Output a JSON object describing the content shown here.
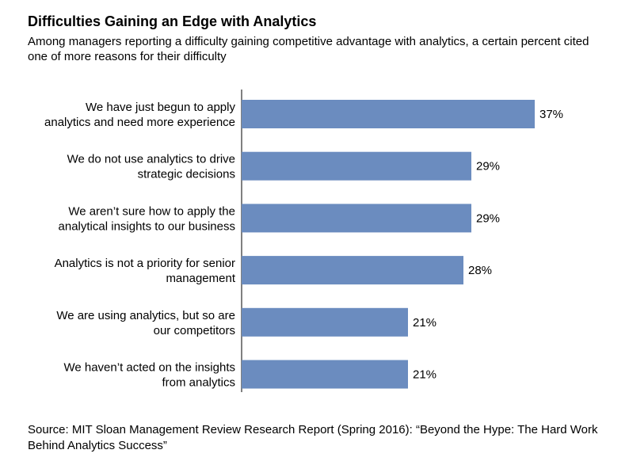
{
  "chart_data": {
    "type": "bar",
    "orientation": "horizontal",
    "title": "Difficulties Gaining an Edge with Analytics",
    "subtitle": "Among managers reporting a difficulty gaining competitive advantage with analytics, a certain percent cited one of more reasons for their difficulty",
    "categories": [
      [
        "We have just begun to apply",
        "analytics and need more experience"
      ],
      [
        "We do not use analytics to drive",
        "strategic decisions"
      ],
      [
        "We aren’t sure how to apply the",
        "analytical insights to our business"
      ],
      [
        "Analytics is not a priority for senior",
        "management"
      ],
      [
        "We are using analytics, but so are",
        "our competitors"
      ],
      [
        "We haven’t acted on the insights",
        "from analytics"
      ]
    ],
    "values": [
      37,
      29,
      29,
      28,
      21,
      21
    ],
    "data_labels": [
      "37%",
      "29%",
      "29%",
      "28%",
      "21%",
      "21%"
    ],
    "xlim": [
      0,
      40
    ],
    "bar_color": "#6b8cbf",
    "grid": false,
    "legend": "none"
  },
  "source": "Source: MIT Sloan Management Review Research Report (Spring 2016): “Beyond the Hype: The Hard Work Behind Analytics Success”"
}
